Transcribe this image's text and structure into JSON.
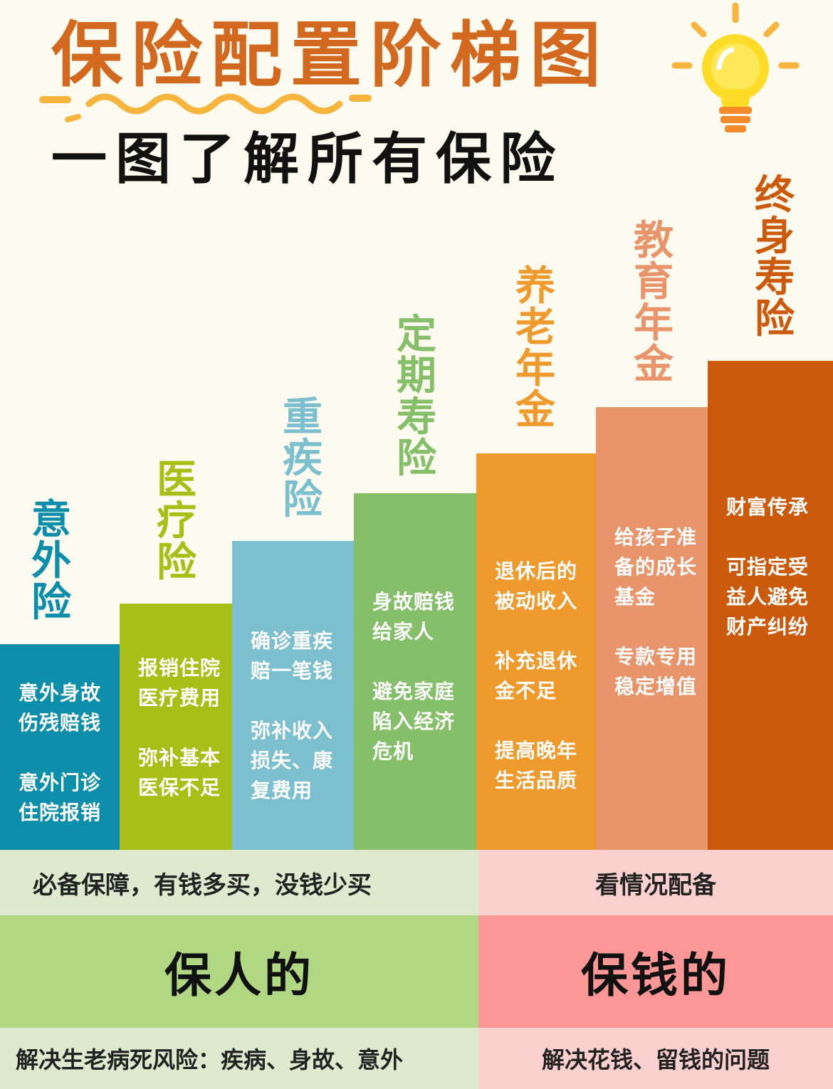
{
  "header": {
    "title": "保险配置阶梯图",
    "subtitle": "一图了解所有保险"
  },
  "icons": {
    "decoration": "lightbulb-icon",
    "underline": "squiggle-underline"
  },
  "colors": {
    "title": "#d2691e",
    "accident": "#0d8eab",
    "medical": "#a8bf17",
    "critical": "#7cc0cf",
    "term_life": "#86bf69",
    "pension": "#ee9a2c",
    "education": "#e9956c",
    "whole_life": "#cc5a0d",
    "people_light": "#dfe9cd",
    "people": "#b0d882",
    "money_light": "#fbd1d0",
    "money": "#fb9796"
  },
  "steps": [
    {
      "name": "意外险",
      "desc": "意外身故\n伤残赔钱\n\n意外门诊\n住院报销"
    },
    {
      "name": "医疗险",
      "desc": "报销住院\n医疗费用\n\n弥补基本\n医保不足"
    },
    {
      "name": "重疾险",
      "desc": "确诊重疾\n赔一笔钱\n\n弥补收入\n损失、康\n复费用"
    },
    {
      "name": "定期寿险",
      "desc": "身故赔钱\n给家人\n\n避免家庭\n陷入经济\n危机"
    },
    {
      "name": "养老年金",
      "desc": "退休后的\n被动收入\n\n补充退休\n金不足\n\n提高晚年\n生活品质"
    },
    {
      "name": "教育年金",
      "desc": "给孩子准\n备的成长\n基金\n\n专款专用\n稳定增值"
    },
    {
      "name": "终身寿险",
      "desc": "财富传承\n\n可指定受\n益人避免\n财产纠纷"
    }
  ],
  "bottom": {
    "people_note": "必备保障，有钱多买，没钱少买",
    "money_note": "看情况配备",
    "people_title": "保人的",
    "money_title": "保钱的",
    "people_desc": "解决生老病死风险：疾病、身故、意外",
    "money_desc": "解决花钱、留钱的问题"
  }
}
